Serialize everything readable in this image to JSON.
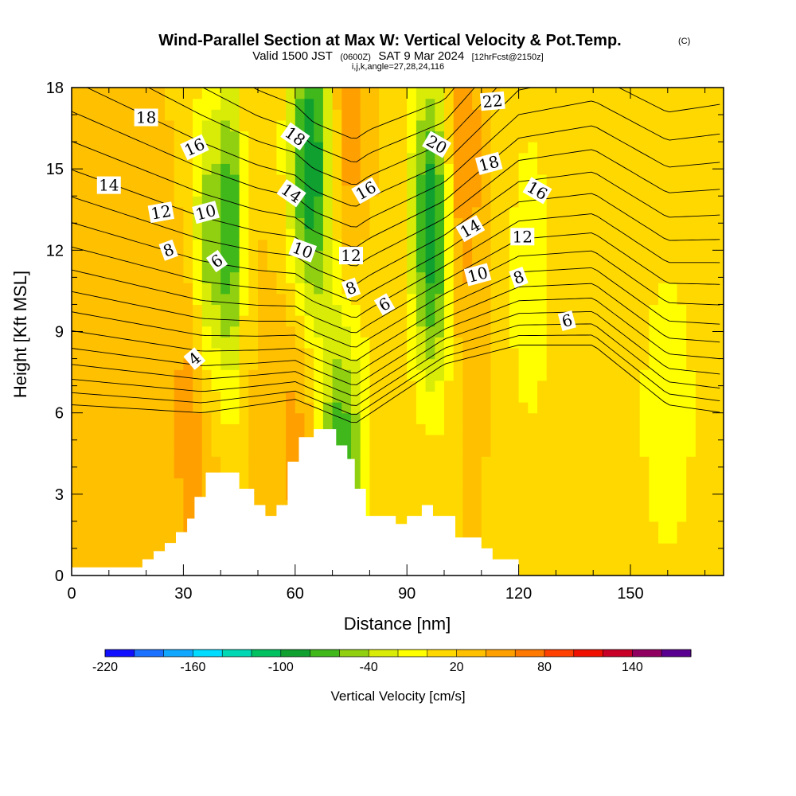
{
  "chart_data": {
    "type": "heatmap",
    "title": "Wind-Parallel Section at Max W: Vertical Velocity & Pot.Temp.",
    "title_mark": "(C)",
    "subtitle_parts": [
      "Valid 1500 JST",
      "(0600Z)",
      "SAT 9 Mar 2024",
      "[12hrFcst@2150z]"
    ],
    "subtitle2": "i,j,k,angle=27,28,24,116",
    "xlabel": "Distance [nm]",
    "ylabel": "Height [Kft MSL]",
    "xlim": [
      0,
      175
    ],
    "ylim": [
      0,
      18
    ],
    "x_ticks": [
      0,
      30,
      60,
      90,
      120,
      150
    ],
    "y_ticks": [
      0,
      3,
      6,
      9,
      12,
      15,
      18
    ],
    "colorbar": {
      "label": "Vertical Velocity [cm/s]",
      "min": -220,
      "max": 180,
      "step": 20,
      "tick_values": [
        -220,
        -160,
        -100,
        -40,
        20,
        80,
        140
      ],
      "colors": [
        "#1010ff",
        "#1a70ff",
        "#10a8ff",
        "#00dcff",
        "#00d8b4",
        "#00c060",
        "#10a030",
        "#40b81c",
        "#90d010",
        "#d8ec08",
        "#ffff00",
        "#ffd800",
        "#ffc000",
        "#ffa000",
        "#ff7800",
        "#ff4000",
        "#f01000",
        "#c80028",
        "#900060",
        "#5a0090"
      ]
    },
    "vertical_velocity_field": {
      "background": 20,
      "features": [
        {
          "center_x": 37,
          "center_y": 12,
          "width": 5,
          "value": -60
        },
        {
          "center_x": 43,
          "center_y": 13,
          "width": 3,
          "value": -60
        },
        {
          "center_x": 33,
          "center_y": 6,
          "width": 6,
          "value": 60
        },
        {
          "center_x": 62,
          "center_y": 6,
          "width": 7,
          "value": 60
        },
        {
          "center_x": 64,
          "center_y": 15,
          "width": 6,
          "value": -100
        },
        {
          "center_x": 72,
          "center_y": 4,
          "width": 7,
          "value": -80
        },
        {
          "center_x": 74,
          "center_y": 17,
          "width": 4,
          "value": 60
        },
        {
          "center_x": 97,
          "center_y": 13,
          "width": 6,
          "value": -100
        },
        {
          "center_x": 104,
          "center_y": 15,
          "width": 5,
          "value": 80
        },
        {
          "center_x": 160,
          "center_y": 6,
          "width": 8,
          "value": -20
        },
        {
          "center_x": 123,
          "center_y": 11,
          "width": 6,
          "value": -20
        }
      ]
    },
    "terrain_kft": [
      [
        0,
        0.3
      ],
      [
        19,
        0.3
      ],
      [
        19,
        0.6
      ],
      [
        22,
        0.6
      ],
      [
        22,
        0.9
      ],
      [
        25,
        0.9
      ],
      [
        25,
        1.2
      ],
      [
        28,
        1.2
      ],
      [
        28,
        1.6
      ],
      [
        31,
        1.6
      ],
      [
        31,
        2.1
      ],
      [
        33,
        2.1
      ],
      [
        33,
        2.9
      ],
      [
        36,
        2.9
      ],
      [
        36,
        3.8
      ],
      [
        45,
        3.8
      ],
      [
        45,
        3.2
      ],
      [
        49,
        3.2
      ],
      [
        49,
        2.6
      ],
      [
        52,
        2.6
      ],
      [
        52,
        2.2
      ],
      [
        55,
        2.2
      ],
      [
        55,
        2.6
      ],
      [
        58,
        2.6
      ],
      [
        58,
        4.2
      ],
      [
        61,
        4.2
      ],
      [
        61,
        5.1
      ],
      [
        65,
        5.1
      ],
      [
        65,
        5.4
      ],
      [
        71,
        5.4
      ],
      [
        71,
        4.8
      ],
      [
        74,
        4.8
      ],
      [
        74,
        4.3
      ],
      [
        76,
        4.3
      ],
      [
        76,
        3.2
      ],
      [
        79,
        3.2
      ],
      [
        79,
        2.2
      ],
      [
        87,
        2.2
      ],
      [
        87,
        1.9
      ],
      [
        90,
        1.9
      ],
      [
        90,
        2.2
      ],
      [
        94,
        2.2
      ],
      [
        94,
        2.6
      ],
      [
        97,
        2.6
      ],
      [
        97,
        2.2
      ],
      [
        103,
        2.2
      ],
      [
        103,
        1.4
      ],
      [
        110,
        1.4
      ],
      [
        110,
        1.0
      ],
      [
        113,
        1.0
      ],
      [
        113,
        0.6
      ],
      [
        120,
        0.6
      ],
      [
        120,
        0.0
      ]
    ],
    "potential_temperature_contours": {
      "units": "C",
      "interval": 1,
      "levels": [
        4,
        5,
        6,
        7,
        8,
        9,
        10,
        11,
        12,
        13,
        14,
        15,
        16,
        17,
        18,
        19,
        20,
        21,
        22
      ],
      "base_height": [
        [
          0,
          6.3
        ],
        [
          35,
          6.0
        ],
        [
          60,
          6.5
        ],
        [
          76,
          5.6
        ],
        [
          100,
          7.8
        ],
        [
          120,
          8.5
        ],
        [
          140,
          8.5
        ],
        [
          160,
          6.3
        ],
        [
          175,
          6.0
        ]
      ],
      "level_spacing": [
        [
          0,
          0.42
        ],
        [
          35,
          0.35
        ],
        [
          50,
          0.31
        ],
        [
          65,
          0.28
        ],
        [
          80,
          0.28
        ],
        [
          100,
          0.26
        ],
        [
          120,
          0.33
        ],
        [
          140,
          0.35
        ],
        [
          175,
          0.4
        ]
      ],
      "labels": [
        {
          "text": "4",
          "x": 33,
          "y": 8.0,
          "angle": -40
        },
        {
          "text": "6",
          "x": 39,
          "y": 11.6,
          "angle": -35
        },
        {
          "text": "8",
          "x": 26,
          "y": 12.0,
          "angle": -20
        },
        {
          "text": "10",
          "x": 36,
          "y": 13.4,
          "angle": -15
        },
        {
          "text": "12",
          "x": 24,
          "y": 13.4,
          "angle": -10
        },
        {
          "text": "14",
          "x": 10,
          "y": 14.4,
          "angle": 0
        },
        {
          "text": "16",
          "x": 33,
          "y": 15.8,
          "angle": -25
        },
        {
          "text": "18",
          "x": 20,
          "y": 16.9,
          "angle": 0
        },
        {
          "text": "18",
          "x": 60,
          "y": 16.2,
          "angle": 35
        },
        {
          "text": "14",
          "x": 59,
          "y": 14.1,
          "angle": 35
        },
        {
          "text": "10",
          "x": 62,
          "y": 12.0,
          "angle": 20
        },
        {
          "text": "12",
          "x": 75,
          "y": 11.8,
          "angle": 0
        },
        {
          "text": "8",
          "x": 75,
          "y": 10.6,
          "angle": -20
        },
        {
          "text": "16",
          "x": 79,
          "y": 14.2,
          "angle": -30
        },
        {
          "text": "6",
          "x": 84,
          "y": 10.0,
          "angle": -30
        },
        {
          "text": "20",
          "x": 98,
          "y": 15.9,
          "angle": 30
        },
        {
          "text": "22",
          "x": 113,
          "y": 17.5,
          "angle": -5
        },
        {
          "text": "18",
          "x": 112,
          "y": 15.2,
          "angle": -15
        },
        {
          "text": "16",
          "x": 125,
          "y": 14.2,
          "angle": 30
        },
        {
          "text": "14",
          "x": 107,
          "y": 12.8,
          "angle": -30
        },
        {
          "text": "12",
          "x": 121,
          "y": 12.5,
          "angle": 0
        },
        {
          "text": "10",
          "x": 109,
          "y": 11.1,
          "angle": -15
        },
        {
          "text": "8",
          "x": 120,
          "y": 11.0,
          "angle": -20
        },
        {
          "text": "6",
          "x": 133,
          "y": 9.4,
          "angle": -15
        }
      ]
    },
    "grid": false,
    "legend": "bottom"
  }
}
